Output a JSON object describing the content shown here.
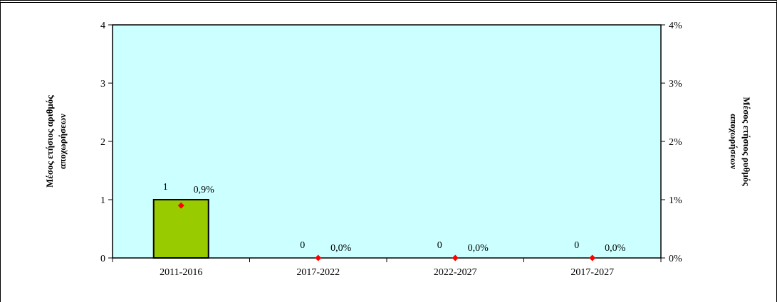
{
  "chart_data": {
    "type": "bar",
    "categories": [
      "2011-2016",
      "2017-2022",
      "2022-2027",
      "2017-2027"
    ],
    "series": [
      {
        "kind": "bar",
        "axis": "left",
        "values": [
          1,
          0,
          0,
          0
        ],
        "labels": [
          "1",
          "0",
          "0",
          "0"
        ],
        "color": "#99cc00"
      },
      {
        "kind": "marker",
        "axis": "right",
        "values": [
          0.9,
          0.0,
          0.0,
          0.0
        ],
        "labels": [
          "0,9%",
          "0,0%",
          "0,0%",
          "0,0%"
        ],
        "color": "#ff0000"
      }
    ],
    "ylabel": "Μέσος ετήσιος αριθμός αποχωρήσεων",
    "y2label": "Μέσος ετήσιος ρυθμός αποχωρήσεων",
    "ylim": [
      0,
      4
    ],
    "y2lim": [
      0,
      4
    ],
    "yticks": [
      "0",
      "1",
      "2",
      "3",
      "4"
    ],
    "y2ticks": [
      "0%",
      "1%",
      "2%",
      "3%",
      "4%"
    ],
    "plot_background": "#ccffff",
    "grid": false,
    "legend": "none"
  }
}
